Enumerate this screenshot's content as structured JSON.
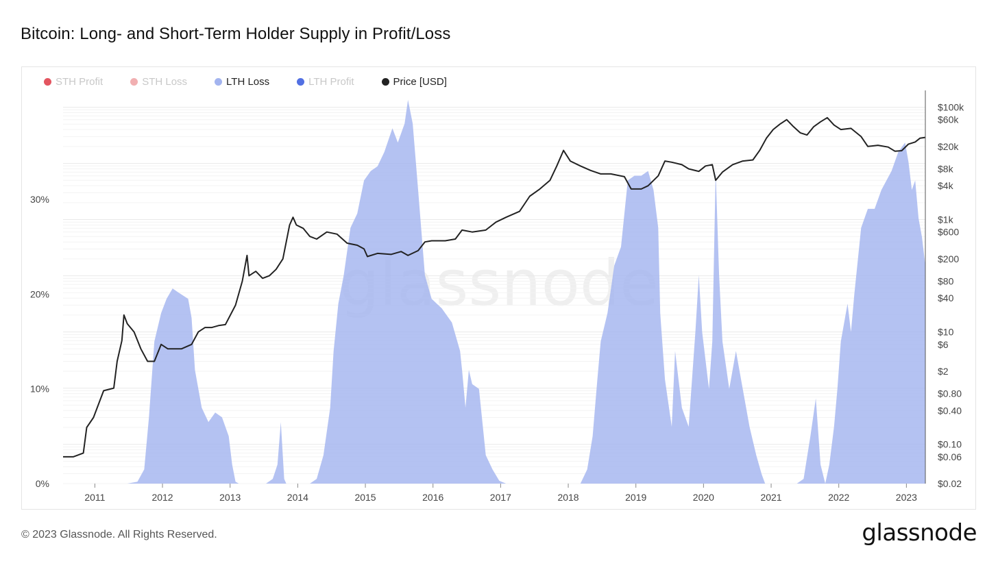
{
  "title": "Bitcoin: Long- and Short-Term Holder Supply in Profit/Loss",
  "footer": {
    "copyright": "© 2023 Glassnode. All Rights Reserved.",
    "brand": "glassnode"
  },
  "watermark": "glassnode",
  "legend": [
    {
      "label": "STH Profit",
      "color": "#e0434f",
      "active": false
    },
    {
      "label": "STH Loss",
      "color": "#f0a6a8",
      "active": false
    },
    {
      "label": "LTH Loss",
      "color": "#a3b4ef",
      "active": true
    },
    {
      "label": "LTH Profit",
      "color": "#3f61e0",
      "active": false
    },
    {
      "label": "Price [USD]",
      "color": "#222222",
      "active": true
    }
  ],
  "chart_data": {
    "type": "area",
    "title": "Bitcoin: Long- and Short-Term Holder Supply in Profit/Loss",
    "x_ticks": [
      "2011",
      "2012",
      "2013",
      "2014",
      "2015",
      "2016",
      "2017",
      "2018",
      "2019",
      "2020",
      "2021",
      "2022",
      "2023"
    ],
    "xlim": [
      2010.55,
      2023.3
    ],
    "left_axis": {
      "ticks": [
        "0%",
        "10%",
        "20%",
        "30%"
      ],
      "tick_values": [
        0,
        10,
        20,
        30
      ],
      "ylim": [
        0,
        41.5
      ]
    },
    "right_axis": {
      "scale": "log",
      "ticks": [
        "$0.02",
        "$0.06",
        "$0.10",
        "$0.40",
        "$0.80",
        "$2",
        "$6",
        "$10",
        "$40",
        "$80",
        "$200",
        "$600",
        "$1k",
        "$4k",
        "$8k",
        "$20k",
        "$60k",
        "$100k"
      ],
      "tick_values": [
        0.02,
        0.06,
        0.1,
        0.4,
        0.8,
        2,
        6,
        10,
        40,
        80,
        200,
        600,
        1000,
        4000,
        8000,
        20000,
        60000,
        100000
      ],
      "ylim": [
        0.02,
        120000
      ]
    },
    "series": [
      {
        "name": "LTH Loss",
        "unit": "%",
        "color": "#a3b4ef",
        "points": [
          [
            2010.55,
            0
          ],
          [
            2011.0,
            0
          ],
          [
            2011.5,
            0
          ],
          [
            2011.65,
            0.2
          ],
          [
            2011.75,
            1.5
          ],
          [
            2011.82,
            7
          ],
          [
            2011.9,
            15
          ],
          [
            2012.0,
            18
          ],
          [
            2012.08,
            19.5
          ],
          [
            2012.17,
            20.6
          ],
          [
            2012.25,
            20.2
          ],
          [
            2012.4,
            19.5
          ],
          [
            2012.45,
            17.5
          ],
          [
            2012.5,
            12
          ],
          [
            2012.6,
            8
          ],
          [
            2012.7,
            6.5
          ],
          [
            2012.8,
            7.5
          ],
          [
            2012.9,
            7
          ],
          [
            2013.0,
            5
          ],
          [
            2013.05,
            2
          ],
          [
            2013.1,
            0.2
          ],
          [
            2013.15,
            0
          ],
          [
            2013.55,
            0
          ],
          [
            2013.65,
            0.5
          ],
          [
            2013.72,
            2
          ],
          [
            2013.77,
            6.5
          ],
          [
            2013.82,
            0.5
          ],
          [
            2013.85,
            0
          ],
          [
            2014.2,
            0
          ],
          [
            2014.3,
            0.5
          ],
          [
            2014.4,
            3
          ],
          [
            2014.5,
            8
          ],
          [
            2014.55,
            14
          ],
          [
            2014.62,
            19
          ],
          [
            2014.7,
            22
          ],
          [
            2014.8,
            27
          ],
          [
            2014.9,
            28.5
          ],
          [
            2015.0,
            32
          ],
          [
            2015.1,
            33
          ],
          [
            2015.2,
            33.5
          ],
          [
            2015.3,
            35
          ],
          [
            2015.42,
            37.5
          ],
          [
            2015.5,
            36
          ],
          [
            2015.6,
            38
          ],
          [
            2015.65,
            40.5
          ],
          [
            2015.72,
            38
          ],
          [
            2015.8,
            31
          ],
          [
            2015.9,
            22
          ],
          [
            2016.0,
            19.5
          ],
          [
            2016.15,
            18.5
          ],
          [
            2016.3,
            17
          ],
          [
            2016.42,
            14
          ],
          [
            2016.45,
            12
          ],
          [
            2016.5,
            8
          ],
          [
            2016.55,
            12
          ],
          [
            2016.6,
            10.5
          ],
          [
            2016.7,
            10
          ],
          [
            2016.8,
            3
          ],
          [
            2016.9,
            1.5
          ],
          [
            2017.0,
            0.3
          ],
          [
            2017.1,
            0
          ],
          [
            2018.2,
            0
          ],
          [
            2018.3,
            1.5
          ],
          [
            2018.38,
            5
          ],
          [
            2018.45,
            11
          ],
          [
            2018.5,
            15
          ],
          [
            2018.6,
            18
          ],
          [
            2018.7,
            23
          ],
          [
            2018.8,
            25
          ],
          [
            2018.9,
            32
          ],
          [
            2019.0,
            32.5
          ],
          [
            2019.1,
            32.5
          ],
          [
            2019.2,
            33
          ],
          [
            2019.28,
            31
          ],
          [
            2019.35,
            27
          ],
          [
            2019.38,
            18
          ],
          [
            2019.45,
            11
          ],
          [
            2019.55,
            6
          ],
          [
            2019.6,
            14
          ],
          [
            2019.7,
            8
          ],
          [
            2019.8,
            6
          ],
          [
            2019.9,
            16
          ],
          [
            2019.95,
            22
          ],
          [
            2020.0,
            16
          ],
          [
            2020.1,
            10
          ],
          [
            2020.15,
            15
          ],
          [
            2020.2,
            33
          ],
          [
            2020.25,
            22
          ],
          [
            2020.3,
            15
          ],
          [
            2020.4,
            10
          ],
          [
            2020.5,
            14
          ],
          [
            2020.6,
            10
          ],
          [
            2020.7,
            6
          ],
          [
            2020.8,
            3
          ],
          [
            2020.88,
            1
          ],
          [
            2020.93,
            0
          ],
          [
            2021.4,
            0
          ],
          [
            2021.5,
            0.5
          ],
          [
            2021.6,
            5
          ],
          [
            2021.68,
            9
          ],
          [
            2021.75,
            2
          ],
          [
            2021.82,
            0
          ],
          [
            2021.88,
            2
          ],
          [
            2021.95,
            6
          ],
          [
            2022.0,
            10
          ],
          [
            2022.05,
            15
          ],
          [
            2022.1,
            17
          ],
          [
            2022.15,
            19
          ],
          [
            2022.2,
            16
          ],
          [
            2022.25,
            20
          ],
          [
            2022.35,
            27
          ],
          [
            2022.45,
            29
          ],
          [
            2022.55,
            29
          ],
          [
            2022.65,
            31
          ],
          [
            2022.8,
            33
          ],
          [
            2022.9,
            35
          ],
          [
            2023.0,
            36
          ],
          [
            2023.05,
            34
          ],
          [
            2023.1,
            31
          ],
          [
            2023.15,
            32
          ],
          [
            2023.2,
            28
          ],
          [
            2023.25,
            26
          ],
          [
            2023.3,
            23
          ]
        ]
      },
      {
        "name": "Price [USD]",
        "unit": "USD",
        "color": "#222222",
        "axis": "right",
        "points": [
          [
            2010.55,
            0.06
          ],
          [
            2010.7,
            0.06
          ],
          [
            2010.85,
            0.07
          ],
          [
            2010.9,
            0.2
          ],
          [
            2011.0,
            0.3
          ],
          [
            2011.15,
            0.9
          ],
          [
            2011.3,
            1.0
          ],
          [
            2011.35,
            3
          ],
          [
            2011.42,
            7
          ],
          [
            2011.45,
            20
          ],
          [
            2011.5,
            14
          ],
          [
            2011.6,
            10
          ],
          [
            2011.7,
            5
          ],
          [
            2011.8,
            3
          ],
          [
            2011.9,
            3
          ],
          [
            2012.0,
            6
          ],
          [
            2012.1,
            5
          ],
          [
            2012.3,
            5
          ],
          [
            2012.45,
            6
          ],
          [
            2012.55,
            10
          ],
          [
            2012.65,
            12
          ],
          [
            2012.75,
            12
          ],
          [
            2012.85,
            13
          ],
          [
            2012.95,
            13.5
          ],
          [
            2013.1,
            30
          ],
          [
            2013.2,
            80
          ],
          [
            2013.27,
            230
          ],
          [
            2013.3,
            100
          ],
          [
            2013.4,
            120
          ],
          [
            2013.5,
            90
          ],
          [
            2013.6,
            100
          ],
          [
            2013.7,
            130
          ],
          [
            2013.8,
            200
          ],
          [
            2013.9,
            800
          ],
          [
            2013.95,
            1100
          ],
          [
            2014.0,
            800
          ],
          [
            2014.1,
            700
          ],
          [
            2014.2,
            500
          ],
          [
            2014.3,
            450
          ],
          [
            2014.45,
            600
          ],
          [
            2014.6,
            550
          ],
          [
            2014.75,
            380
          ],
          [
            2014.9,
            350
          ],
          [
            2015.0,
            300
          ],
          [
            2015.05,
            220
          ],
          [
            2015.2,
            250
          ],
          [
            2015.4,
            240
          ],
          [
            2015.55,
            270
          ],
          [
            2015.65,
            230
          ],
          [
            2015.8,
            280
          ],
          [
            2015.9,
            400
          ],
          [
            2016.0,
            420
          ],
          [
            2016.2,
            420
          ],
          [
            2016.35,
            450
          ],
          [
            2016.45,
            650
          ],
          [
            2016.6,
            600
          ],
          [
            2016.8,
            650
          ],
          [
            2016.95,
            900
          ],
          [
            2017.1,
            1100
          ],
          [
            2017.3,
            1400
          ],
          [
            2017.45,
            2600
          ],
          [
            2017.6,
            3500
          ],
          [
            2017.75,
            5000
          ],
          [
            2017.85,
            9000
          ],
          [
            2017.95,
            17000
          ],
          [
            2018.05,
            11000
          ],
          [
            2018.2,
            9000
          ],
          [
            2018.35,
            7500
          ],
          [
            2018.5,
            6500
          ],
          [
            2018.65,
            6500
          ],
          [
            2018.85,
            5800
          ],
          [
            2018.95,
            3500
          ],
          [
            2019.1,
            3500
          ],
          [
            2019.2,
            4000
          ],
          [
            2019.35,
            6000
          ],
          [
            2019.45,
            11000
          ],
          [
            2019.55,
            10500
          ],
          [
            2019.7,
            9500
          ],
          [
            2019.8,
            8000
          ],
          [
            2019.95,
            7200
          ],
          [
            2020.05,
            9000
          ],
          [
            2020.15,
            9500
          ],
          [
            2020.2,
            5000
          ],
          [
            2020.3,
            7000
          ],
          [
            2020.45,
            9500
          ],
          [
            2020.6,
            11000
          ],
          [
            2020.75,
            11500
          ],
          [
            2020.85,
            17000
          ],
          [
            2020.95,
            28000
          ],
          [
            2021.05,
            40000
          ],
          [
            2021.15,
            50000
          ],
          [
            2021.25,
            60000
          ],
          [
            2021.35,
            45000
          ],
          [
            2021.45,
            35000
          ],
          [
            2021.55,
            32000
          ],
          [
            2021.65,
            45000
          ],
          [
            2021.75,
            55000
          ],
          [
            2021.85,
            65000
          ],
          [
            2021.95,
            48000
          ],
          [
            2022.05,
            40000
          ],
          [
            2022.2,
            42000
          ],
          [
            2022.35,
            30000
          ],
          [
            2022.45,
            20000
          ],
          [
            2022.6,
            21000
          ],
          [
            2022.75,
            19500
          ],
          [
            2022.85,
            16500
          ],
          [
            2022.95,
            16800
          ],
          [
            2023.05,
            22000
          ],
          [
            2023.15,
            24000
          ],
          [
            2023.22,
            28000
          ],
          [
            2023.3,
            29000
          ]
        ]
      }
    ],
    "grid": true,
    "legend_position": "top-left"
  }
}
